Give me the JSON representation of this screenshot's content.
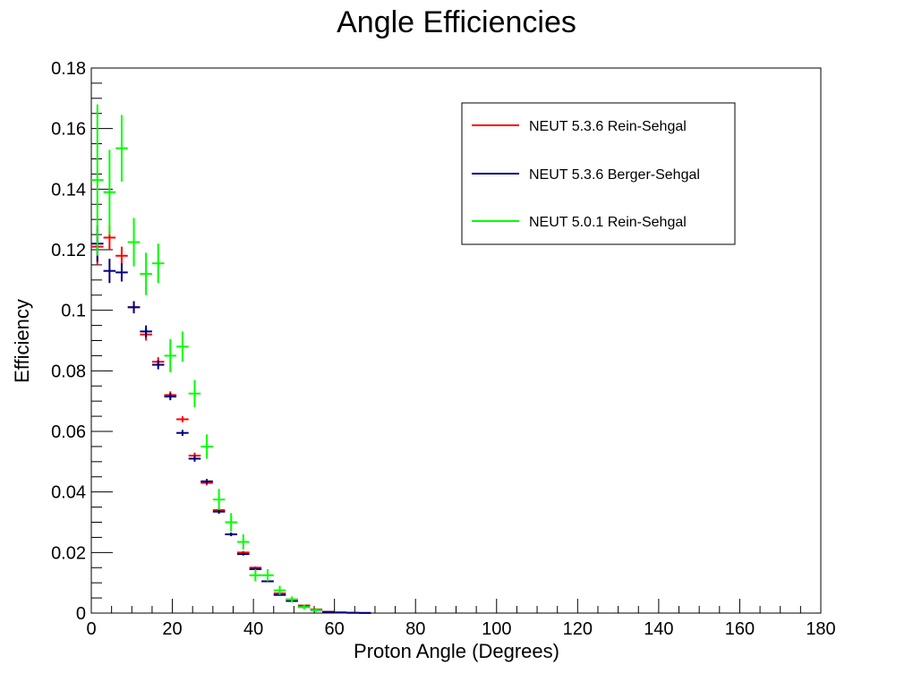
{
  "chart_data": {
    "type": "scatter",
    "title": "Angle Efficiencies",
    "xlabel": "Proton Angle (Degrees)",
    "ylabel": "Efficiency",
    "xlim": [
      0,
      180
    ],
    "ylim": [
      0,
      0.18
    ],
    "x_ticks": [
      "0",
      "20",
      "40",
      "60",
      "80",
      "100",
      "120",
      "140",
      "160",
      "180"
    ],
    "y_ticks": [
      "0",
      "0.02",
      "0.04",
      "0.06",
      "0.08",
      "0.1",
      "0.12",
      "0.14",
      "0.16",
      "0.18"
    ],
    "legend_position": "top-right",
    "grid": false,
    "bin_width": 3,
    "series": [
      {
        "name": "NEUT 5.3.6 Rein-Sehgal",
        "color": "#ff0000",
        "points": [
          {
            "x": 1.5,
            "y": 0.121,
            "err": 0.006
          },
          {
            "x": 4.5,
            "y": 0.124,
            "err": 0.004
          },
          {
            "x": 7.5,
            "y": 0.118,
            "err": 0.003
          },
          {
            "x": 10.5,
            "y": 0.101,
            "err": 0.002
          },
          {
            "x": 13.5,
            "y": 0.092,
            "err": 0.002
          },
          {
            "x": 16.5,
            "y": 0.083,
            "err": 0.0015
          },
          {
            "x": 19.5,
            "y": 0.072,
            "err": 0.0012
          },
          {
            "x": 22.5,
            "y": 0.064,
            "err": 0.001
          },
          {
            "x": 25.5,
            "y": 0.052,
            "err": 0.001
          },
          {
            "x": 28.5,
            "y": 0.043,
            "err": 0.0008
          },
          {
            "x": 31.5,
            "y": 0.034,
            "err": 0.0007
          },
          {
            "x": 34.5,
            "y": 0.026,
            "err": 0.0006
          },
          {
            "x": 37.5,
            "y": 0.02,
            "err": 0.0005
          },
          {
            "x": 40.5,
            "y": 0.015,
            "err": 0.0004
          },
          {
            "x": 43.5,
            "y": 0.0105,
            "err": 0.0003
          },
          {
            "x": 46.5,
            "y": 0.0065,
            "err": 0.0003
          },
          {
            "x": 49.5,
            "y": 0.0045,
            "err": 0.0002
          },
          {
            "x": 52.5,
            "y": 0.0025,
            "err": 0.0002
          },
          {
            "x": 55.5,
            "y": 0.0012,
            "err": 0.0001
          },
          {
            "x": 58.5,
            "y": 0.0004,
            "err": 0.0001
          },
          {
            "x": 61.5,
            "y": 0.0002,
            "err": 0.0001
          },
          {
            "x": 64.5,
            "y": 0.0001,
            "err": 0.0001
          },
          {
            "x": 67.5,
            "y": 5e-05,
            "err": 0.0
          }
        ]
      },
      {
        "name": "NEUT 5.3.6 Berger-Sehgal",
        "color": "#00007f",
        "points": [
          {
            "x": 1.5,
            "y": 0.122,
            "err": 0.006
          },
          {
            "x": 4.5,
            "y": 0.113,
            "err": 0.004
          },
          {
            "x": 7.5,
            "y": 0.1125,
            "err": 0.003
          },
          {
            "x": 10.5,
            "y": 0.101,
            "err": 0.002
          },
          {
            "x": 13.5,
            "y": 0.093,
            "err": 0.002
          },
          {
            "x": 16.5,
            "y": 0.082,
            "err": 0.0015
          },
          {
            "x": 19.5,
            "y": 0.0715,
            "err": 0.0012
          },
          {
            "x": 22.5,
            "y": 0.0595,
            "err": 0.001
          },
          {
            "x": 25.5,
            "y": 0.051,
            "err": 0.001
          },
          {
            "x": 28.5,
            "y": 0.0435,
            "err": 0.0008
          },
          {
            "x": 31.5,
            "y": 0.0335,
            "err": 0.0007
          },
          {
            "x": 34.5,
            "y": 0.026,
            "err": 0.0006
          },
          {
            "x": 37.5,
            "y": 0.0195,
            "err": 0.0005
          },
          {
            "x": 40.5,
            "y": 0.0145,
            "err": 0.0004
          },
          {
            "x": 43.5,
            "y": 0.0105,
            "err": 0.0003
          },
          {
            "x": 46.5,
            "y": 0.006,
            "err": 0.0003
          },
          {
            "x": 49.5,
            "y": 0.004,
            "err": 0.0002
          },
          {
            "x": 52.5,
            "y": 0.002,
            "err": 0.0002
          },
          {
            "x": 55.5,
            "y": 0.001,
            "err": 0.0001
          },
          {
            "x": 58.5,
            "y": 0.0004,
            "err": 0.0001
          },
          {
            "x": 61.5,
            "y": 0.0002,
            "err": 0.0001
          },
          {
            "x": 64.5,
            "y": 0.0001,
            "err": 0.0001
          },
          {
            "x": 67.5,
            "y": 5e-05,
            "err": 0.0
          }
        ]
      },
      {
        "name": "NEUT 5.0.1 Rein-Sehgal",
        "color": "#00ff00",
        "points": [
          {
            "x": 1.5,
            "y": 0.143,
            "err": 0.025
          },
          {
            "x": 4.5,
            "y": 0.139,
            "err": 0.014
          },
          {
            "x": 7.5,
            "y": 0.1535,
            "err": 0.011
          },
          {
            "x": 10.5,
            "y": 0.1225,
            "err": 0.008
          },
          {
            "x": 13.5,
            "y": 0.112,
            "err": 0.007
          },
          {
            "x": 16.5,
            "y": 0.1155,
            "err": 0.0065
          },
          {
            "x": 19.5,
            "y": 0.085,
            "err": 0.0055
          },
          {
            "x": 22.5,
            "y": 0.088,
            "err": 0.005
          },
          {
            "x": 25.5,
            "y": 0.0725,
            "err": 0.0045
          },
          {
            "x": 28.5,
            "y": 0.055,
            "err": 0.004
          },
          {
            "x": 31.5,
            "y": 0.0375,
            "err": 0.0035
          },
          {
            "x": 34.5,
            "y": 0.03,
            "err": 0.003
          },
          {
            "x": 37.5,
            "y": 0.0235,
            "err": 0.0025
          },
          {
            "x": 40.5,
            "y": 0.0125,
            "err": 0.002
          },
          {
            "x": 43.5,
            "y": 0.0125,
            "err": 0.002
          },
          {
            "x": 46.5,
            "y": 0.0075,
            "err": 0.0015
          },
          {
            "x": 49.5,
            "y": 0.0045,
            "err": 0.001
          },
          {
            "x": 52.5,
            "y": 0.002,
            "err": 0.0008
          },
          {
            "x": 55.5,
            "y": 0.001,
            "err": 0.0006
          }
        ]
      }
    ]
  }
}
